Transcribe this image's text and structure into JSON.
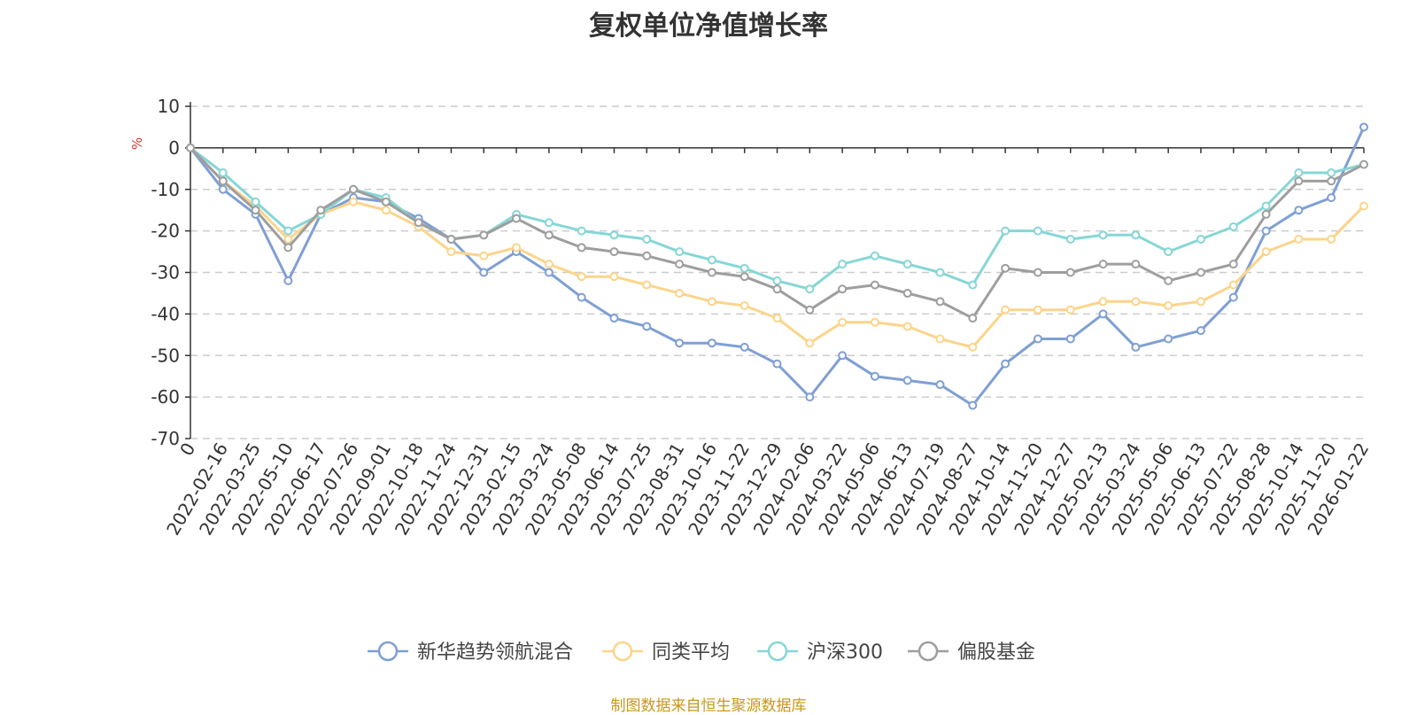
{
  "source_note": "制图数据来自恒生聚源数据库",
  "chart_data": {
    "type": "line",
    "title": "复权单位净值增长率",
    "ylabel": "%",
    "xlabel": "",
    "ylim": [
      -70,
      10
    ],
    "yticks": [
      10,
      0,
      -10,
      -20,
      -30,
      -40,
      -50,
      -60,
      -70
    ],
    "grid": true,
    "legend_position": "bottom-center",
    "x_tick_labels": [
      "0",
      "2022-02-16",
      "2022-03-25",
      "2022-05-10",
      "2022-06-17",
      "2022-07-26",
      "2022-09-01",
      "2022-10-18",
      "2022-11-24",
      "2022-12-31",
      "2023-02-15",
      "2023-03-24",
      "2023-05-08",
      "2023-06-14",
      "2023-07-25",
      "2023-08-31",
      "2023-10-16",
      "2023-11-22",
      "2023-12-29",
      "2024-02-06",
      "2024-03-22",
      "2024-05-06",
      "2024-06-13",
      "2024-07-19",
      "2024-08-27",
      "2024-10-14",
      "2024-11-20",
      "2024-12-27",
      "2025-02-13",
      "2025-03-24",
      "2025-05-06",
      "2025-06-13",
      "2025-07-22",
      "2025-08-28",
      "2025-10-14",
      "2025-11-20",
      "2026-01-22"
    ],
    "x": [
      "0",
      "2022-02-16",
      "2022-03-25",
      "2022-05-10",
      "2022-06-17",
      "2022-07-26",
      "2022-09-01",
      "2022-10-18",
      "2022-11-24",
      "2022-12-31",
      "2023-02-15",
      "2023-03-24",
      "2023-05-08",
      "2023-06-14",
      "2023-07-25",
      "2023-08-31",
      "2023-10-16",
      "2023-11-22",
      "2023-12-29",
      "2024-02-06",
      "2024-03-22",
      "2024-05-06",
      "2024-06-13",
      "2024-07-19",
      "2024-08-27",
      "2024-10-14",
      "2024-11-20",
      "2024-12-27",
      "2025-02-13",
      "2025-03-24",
      "2025-05-06",
      "2025-06-13",
      "2025-07-22",
      "2025-08-28",
      "2025-10-14",
      "2025-11-20",
      "2026-01-22"
    ],
    "series": [
      {
        "name": "新华趋势领航混合",
        "color": "#7f9fd4",
        "values": [
          0,
          -10,
          -16,
          -32,
          -16,
          -12,
          -13,
          -17,
          -22,
          -30,
          -25,
          -30,
          -36,
          -41,
          -43,
          -47,
          -47,
          -48,
          -52,
          -60,
          -50,
          -55,
          -56,
          -57,
          -62,
          -52,
          -46,
          -46,
          -40,
          -48,
          -46,
          -44,
          -36,
          -20,
          -15,
          -12,
          5
        ]
      },
      {
        "name": "同类平均",
        "color": "#fcd48a",
        "values": [
          0,
          -8,
          -14,
          -22,
          -16,
          -13,
          -15,
          -19,
          -25,
          -26,
          -24,
          -28,
          -31,
          -31,
          -33,
          -35,
          -37,
          -38,
          -41,
          -47,
          -42,
          -42,
          -43,
          -46,
          -48,
          -39,
          -39,
          -39,
          -37,
          -37,
          -38,
          -37,
          -33,
          -25,
          -22,
          -22,
          -14
        ]
      },
      {
        "name": "沪深300",
        "color": "#86d6d6",
        "values": [
          0,
          -6,
          -13,
          -20,
          -16,
          -10,
          -12,
          -18,
          -22,
          -21,
          -16,
          -18,
          -20,
          -21,
          -22,
          -25,
          -27,
          -29,
          -32,
          -34,
          -28,
          -26,
          -28,
          -30,
          -33,
          -20,
          -20,
          -22,
          -21,
          -21,
          -25,
          -22,
          -19,
          -14,
          -6,
          -6,
          -4
        ]
      },
      {
        "name": "偏股基金",
        "color": "#9e9e9e",
        "values": [
          0,
          -8,
          -15,
          -24,
          -15,
          -10,
          -13,
          -18,
          -22,
          -21,
          -17,
          -21,
          -24,
          -25,
          -26,
          -28,
          -30,
          -31,
          -34,
          -39,
          -34,
          -33,
          -35,
          -37,
          -41,
          -29,
          -30,
          -30,
          -28,
          -28,
          -32,
          -30,
          -28,
          -16,
          -8,
          -8,
          -4
        ]
      }
    ]
  }
}
